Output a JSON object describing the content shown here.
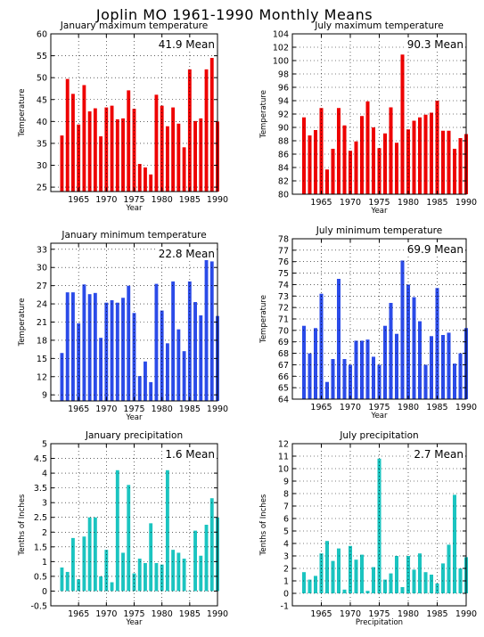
{
  "page": {
    "title": "Joplin MO   1961-1990 Monthly Means"
  },
  "chart_data": [
    {
      "type": "bar",
      "title": "January maximum temperature",
      "xlabel": "Year",
      "ylabel": "Temperature",
      "mean_label": "41.9 Mean",
      "color": "#ee0000",
      "xlim": [
        1960,
        1990
      ],
      "ylim": [
        24,
        60
      ],
      "yticks": [
        25,
        30,
        35,
        40,
        45,
        50,
        55,
        60
      ],
      "xticks": [
        1965,
        1970,
        1975,
        1980,
        1985,
        1990
      ],
      "x": [
        1962,
        1963,
        1964,
        1965,
        1966,
        1967,
        1968,
        1969,
        1970,
        1971,
        1972,
        1973,
        1974,
        1975,
        1976,
        1977,
        1978,
        1979,
        1980,
        1981,
        1982,
        1983,
        1984,
        1985,
        1986,
        1987,
        1988,
        1989,
        1990
      ],
      "values": [
        36.8,
        49.7,
        46.3,
        39.3,
        48.3,
        42.3,
        43.0,
        36.6,
        43.2,
        43.6,
        40.5,
        40.7,
        47.1,
        42.9,
        30.3,
        29.5,
        27.9,
        46.1,
        43.6,
        38.9,
        43.2,
        39.5,
        34.1,
        51.9,
        40.1,
        40.7,
        51.9,
        54.5,
        40.0
      ]
    },
    {
      "type": "bar",
      "title": "July maximum temperature",
      "xlabel": "Year",
      "ylabel": "Temperature",
      "mean_label": "90.3 Mean",
      "color": "#ee0000",
      "xlim": [
        1960,
        1990
      ],
      "ylim": [
        80,
        104
      ],
      "yticks": [
        80,
        82,
        84,
        86,
        88,
        90,
        92,
        94,
        96,
        98,
        100,
        102,
        104
      ],
      "xticks": [
        1965,
        1970,
        1975,
        1980,
        1985,
        1990
      ],
      "x": [
        1962,
        1963,
        1964,
        1965,
        1966,
        1967,
        1968,
        1969,
        1970,
        1971,
        1972,
        1973,
        1974,
        1975,
        1976,
        1977,
        1978,
        1979,
        1980,
        1981,
        1982,
        1983,
        1984,
        1985,
        1986,
        1987,
        1988,
        1989,
        1990
      ],
      "values": [
        91.5,
        88.8,
        89.6,
        92.9,
        83.7,
        86.8,
        92.9,
        90.3,
        86.5,
        87.9,
        91.7,
        93.9,
        90.0,
        86.9,
        89.1,
        93.0,
        87.7,
        100.9,
        89.7,
        91.0,
        91.5,
        91.9,
        92.2,
        94.0,
        89.5,
        89.5,
        86.8,
        88.4,
        89.0
      ]
    },
    {
      "type": "bar",
      "title": "January minimum temperature",
      "xlabel": "Year",
      "ylabel": "Temperature",
      "mean_label": "22.8 Mean",
      "color": "#2b4be8",
      "xlim": [
        1960,
        1990
      ],
      "ylim": [
        8,
        34
      ],
      "yticks": [
        9,
        12,
        15,
        18,
        21,
        24,
        27,
        30,
        33
      ],
      "xticks": [
        1965,
        1970,
        1975,
        1980,
        1985,
        1990
      ],
      "x": [
        1962,
        1963,
        1964,
        1965,
        1966,
        1967,
        1968,
        1969,
        1970,
        1971,
        1972,
        1973,
        1974,
        1975,
        1976,
        1977,
        1978,
        1979,
        1980,
        1981,
        1982,
        1983,
        1984,
        1985,
        1986,
        1987,
        1988,
        1989,
        1990
      ],
      "values": [
        15.9,
        25.9,
        25.9,
        20.8,
        27.2,
        25.6,
        25.8,
        18.4,
        24.2,
        24.6,
        24.2,
        25.0,
        27.0,
        22.5,
        12.1,
        14.5,
        11.1,
        27.3,
        22.9,
        17.5,
        27.7,
        19.8,
        16.2,
        27.7,
        24.3,
        22.1,
        31.6,
        31.0,
        22.0
      ]
    },
    {
      "type": "bar",
      "title": "July minimum temperature",
      "xlabel": "Year",
      "ylabel": "Temperature",
      "mean_label": "69.9 Mean",
      "color": "#2b4be8",
      "xlim": [
        1960,
        1990
      ],
      "ylim": [
        64,
        78
      ],
      "yticks": [
        64,
        65,
        66,
        67,
        68,
        69,
        70,
        71,
        72,
        73,
        74,
        75,
        76,
        77,
        78
      ],
      "xticks": [
        1965,
        1970,
        1975,
        1980,
        1985,
        1990
      ],
      "x": [
        1962,
        1963,
        1964,
        1965,
        1966,
        1967,
        1968,
        1969,
        1970,
        1971,
        1972,
        1973,
        1974,
        1975,
        1976,
        1977,
        1978,
        1979,
        1980,
        1981,
        1982,
        1983,
        1984,
        1985,
        1986,
        1987,
        1988,
        1989,
        1990
      ],
      "values": [
        70.4,
        68.0,
        70.2,
        73.2,
        65.5,
        67.5,
        74.5,
        67.5,
        67.0,
        69.1,
        69.1,
        69.2,
        67.7,
        67.0,
        70.4,
        72.4,
        69.7,
        76.1,
        74.0,
        72.9,
        70.8,
        67.0,
        69.5,
        73.7,
        69.6,
        69.8,
        67.1,
        68.0,
        70.2
      ]
    },
    {
      "type": "bar",
      "title": "January precipitation",
      "xlabel": "Year",
      "ylabel": "Tenths of Inches",
      "mean_label": "1.6 Mean",
      "color": "#1bc4c0",
      "xlim": [
        1960,
        1990
      ],
      "ylim": [
        -0.5,
        5
      ],
      "yticks": [
        -0.5,
        0,
        0.5,
        1,
        1.5,
        2,
        2.5,
        3,
        3.5,
        4,
        4.5,
        5
      ],
      "xticks": [
        1965,
        1970,
        1975,
        1980,
        1985,
        1990
      ],
      "x": [
        1962,
        1963,
        1964,
        1965,
        1966,
        1967,
        1968,
        1969,
        1970,
        1971,
        1972,
        1973,
        1974,
        1975,
        1976,
        1977,
        1978,
        1979,
        1980,
        1981,
        1982,
        1983,
        1984,
        1985,
        1986,
        1987,
        1988,
        1989,
        1990
      ],
      "values": [
        0.8,
        0.65,
        1.8,
        0.4,
        1.85,
        2.5,
        2.5,
        0.5,
        1.4,
        0.3,
        4.1,
        1.3,
        3.6,
        0.6,
        1.1,
        0.95,
        2.3,
        0.95,
        0.9,
        4.1,
        1.4,
        1.3,
        1.1,
        0.0,
        2.05,
        1.2,
        2.25,
        3.15,
        2.5
      ]
    },
    {
      "type": "bar",
      "title": "July precipitation",
      "xlabel": "Precipitation",
      "ylabel": "Tenths of Inches",
      "mean_label": "2.7 Mean",
      "color": "#1bc4c0",
      "xlim": [
        1960,
        1990
      ],
      "ylim": [
        -1,
        12
      ],
      "yticks": [
        -1,
        0,
        1,
        2,
        3,
        4,
        5,
        6,
        7,
        8,
        9,
        10,
        11,
        12
      ],
      "xticks": [
        1965,
        1970,
        1975,
        1980,
        1985,
        1990
      ],
      "x": [
        1962,
        1963,
        1964,
        1965,
        1966,
        1967,
        1968,
        1969,
        1970,
        1971,
        1972,
        1973,
        1974,
        1975,
        1976,
        1977,
        1978,
        1979,
        1980,
        1981,
        1982,
        1983,
        1984,
        1985,
        1986,
        1987,
        1988,
        1989,
        1990
      ],
      "values": [
        1.7,
        1.1,
        1.4,
        3.2,
        4.2,
        2.6,
        3.6,
        0.3,
        3.8,
        2.7,
        3.1,
        0.2,
        2.1,
        10.8,
        1.1,
        1.6,
        3.0,
        0.5,
        3.0,
        1.9,
        3.2,
        1.7,
        1.5,
        0.8,
        2.4,
        3.9,
        7.9,
        2.0,
        2.9
      ]
    }
  ]
}
